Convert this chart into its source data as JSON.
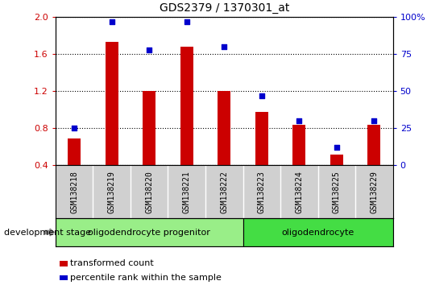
{
  "title": "GDS2379 / 1370301_at",
  "samples": [
    "GSM138218",
    "GSM138219",
    "GSM138220",
    "GSM138221",
    "GSM138222",
    "GSM138223",
    "GSM138224",
    "GSM138225",
    "GSM138229"
  ],
  "transformed_count": [
    0.69,
    1.73,
    1.2,
    1.68,
    1.2,
    0.98,
    0.84,
    0.52,
    0.84
  ],
  "percentile_rank": [
    25,
    97,
    78,
    97,
    80,
    47,
    30,
    12,
    30
  ],
  "ylim_left": [
    0.4,
    2.0
  ],
  "ylim_right": [
    0,
    100
  ],
  "yticks_left": [
    0.4,
    0.8,
    1.2,
    1.6,
    2.0
  ],
  "yticks_right": [
    0,
    25,
    50,
    75,
    100
  ],
  "groups": [
    {
      "label": "oligodendrocyte progenitor",
      "start": 0,
      "end": 5,
      "color": "#99EE88"
    },
    {
      "label": "oligodendrocyte",
      "start": 5,
      "end": 9,
      "color": "#44DD44"
    }
  ],
  "bar_color": "#CC0000",
  "dot_color": "#0000CC",
  "bar_width": 0.35,
  "plot_bg_color": "#ffffff",
  "legend_items": [
    {
      "color": "#CC0000",
      "label": "transformed count"
    },
    {
      "color": "#0000CC",
      "label": "percentile rank within the sample"
    }
  ],
  "dev_stage_label": "development stage",
  "tick_label_bg": "#d0d0d0",
  "grid_style": "dotted"
}
